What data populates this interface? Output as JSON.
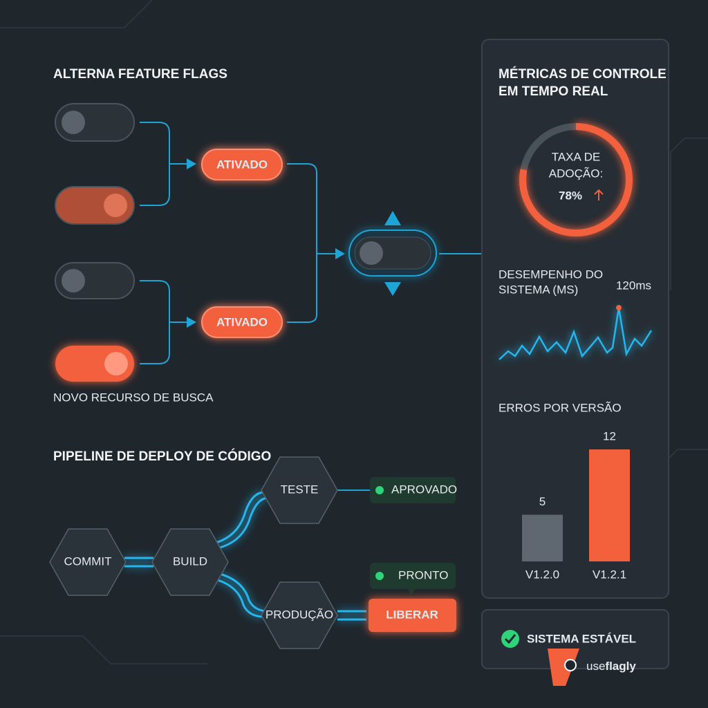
{
  "flags": {
    "title": "ALTERNA FEATURE FLAGS",
    "badges": [
      "ATIVADO",
      "ATIVADO"
    ],
    "caption": "NOVO RECURSO DE BUSCA"
  },
  "pipeline": {
    "title": "PIPELINE DE DEPLOY DE CÓDIGO",
    "nodes": [
      "COMMIT",
      "BUILD",
      "TESTE",
      "PRODUÇÃO"
    ],
    "statuses": [
      "APROVADO",
      "PRONTO"
    ],
    "button": "LIBERAR"
  },
  "metrics": {
    "title_lines": [
      "MÉTRICAS DE CONTROLE",
      "EM TEMPO REAL"
    ],
    "adoption": {
      "label_lines": [
        "TAXA DE",
        "ADOÇÃO:"
      ],
      "value": 78,
      "value_label": "78%"
    },
    "performance": {
      "label_lines": [
        "DESEMPENHO DO",
        "SISTEMA (MS)"
      ],
      "value": 120,
      "value_label": "120ms"
    },
    "errors": {
      "title": "ERROS POR VERSÃO",
      "categories": [
        "V1.2.0",
        "V1.2.1"
      ],
      "values": [
        5,
        12
      ],
      "colors": [
        "#5f6870",
        "#f2603c"
      ]
    }
  },
  "status": "SISTEMA ESTÁVEL",
  "brand": {
    "prefix": "use",
    "name": "flagly"
  }
}
